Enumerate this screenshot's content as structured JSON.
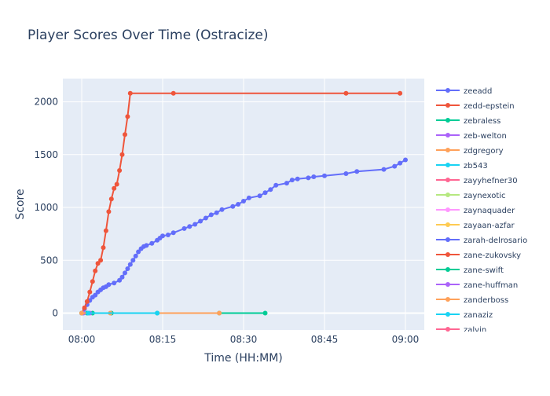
{
  "chart_data": {
    "type": "line",
    "title": "Player Scores Over Time (Ostracize)",
    "xlabel": "Time (HH:MM)",
    "ylabel": "Score",
    "x_ticks": [
      "08:00",
      "08:15",
      "08:30",
      "08:45",
      "09:00"
    ],
    "y_ticks": [
      0,
      500,
      1000,
      1500,
      2000
    ],
    "xlim_minutes": [
      -3.5,
      63.5
    ],
    "ylim": [
      -160,
      2220
    ],
    "grid": true,
    "legend_position": "right",
    "legend": [
      {
        "name": "zeeadd",
        "color": "#636efa"
      },
      {
        "name": "zedd-epstein",
        "color": "#EF553B"
      },
      {
        "name": "zebraless",
        "color": "#00cc96"
      },
      {
        "name": "zeb-welton",
        "color": "#ab63fa"
      },
      {
        "name": "zdgregory",
        "color": "#FFA15A"
      },
      {
        "name": "zb543",
        "color": "#19d3f3"
      },
      {
        "name": "zayyhefner30",
        "color": "#FF6692"
      },
      {
        "name": "zaynexotic",
        "color": "#B6E880"
      },
      {
        "name": "zaynaquader",
        "color": "#FF97FF"
      },
      {
        "name": "zayaan-azfar",
        "color": "#FECB52"
      },
      {
        "name": "zarah-delrosario",
        "color": "#636efa"
      },
      {
        "name": "zane-zukovsky",
        "color": "#EF553B"
      },
      {
        "name": "zane-swift",
        "color": "#00cc96"
      },
      {
        "name": "zane-huffman",
        "color": "#ab63fa"
      },
      {
        "name": "zanderboss",
        "color": "#FFA15A"
      },
      {
        "name": "zanaziz",
        "color": "#19d3f3"
      },
      {
        "name": "zalvin",
        "color": "#FF6692"
      }
    ],
    "series": [
      {
        "name": "zarah-delrosario",
        "color": "#636efa",
        "x_minutes": [
          0,
          0.5,
          1,
          1.5,
          2,
          2.5,
          3,
          3.5,
          4,
          4.5,
          5,
          6,
          7,
          7.5,
          8,
          8.5,
          9,
          9.5,
          10,
          10.5,
          11,
          11.5,
          12,
          13,
          14,
          14.5,
          15,
          16,
          17,
          19,
          20,
          21,
          22,
          23,
          24,
          25,
          26,
          28,
          29,
          30,
          31,
          33,
          34,
          35,
          36,
          38,
          39,
          40,
          42,
          43,
          45,
          49,
          51,
          56,
          58,
          59,
          60
        ],
        "y": [
          0,
          40,
          80,
          120,
          150,
          170,
          200,
          220,
          240,
          250,
          270,
          285,
          310,
          340,
          380,
          420,
          460,
          500,
          540,
          580,
          610,
          630,
          640,
          660,
          690,
          710,
          730,
          740,
          760,
          800,
          820,
          840,
          870,
          900,
          930,
          950,
          980,
          1010,
          1030,
          1060,
          1090,
          1110,
          1140,
          1170,
          1210,
          1230,
          1260,
          1270,
          1280,
          1290,
          1300,
          1320,
          1340,
          1360,
          1390,
          1420,
          1450
        ]
      },
      {
        "name": "zane-zukovsky",
        "color": "#EF553B",
        "x_minutes": [
          0,
          0.5,
          1,
          1.5,
          2,
          2.5,
          3,
          3.5,
          4,
          4.5,
          5,
          5.5,
          6,
          6.5,
          7,
          7.5,
          8,
          8.5,
          9,
          17,
          49,
          59
        ],
        "y": [
          0,
          50,
          110,
          200,
          300,
          400,
          470,
          500,
          620,
          780,
          960,
          1080,
          1180,
          1220,
          1350,
          1500,
          1690,
          1860,
          2080,
          2080,
          2080,
          2080
        ]
      },
      {
        "name": "zebraless",
        "color": "#00cc96",
        "x_minutes": [
          0,
          1,
          2,
          5.5,
          14,
          25.5,
          34
        ],
        "y": [
          0,
          0,
          0,
          0,
          0,
          0,
          0
        ]
      },
      {
        "name": "zeb-welton",
        "color": "#ab63fa",
        "x_minutes": [
          0.3,
          1.5
        ],
        "y": [
          0,
          0
        ]
      },
      {
        "name": "zdgregory",
        "color": "#FFA15A",
        "x_minutes": [
          0,
          5.3,
          25.5
        ],
        "y": [
          0,
          0,
          0
        ]
      },
      {
        "name": "zb543",
        "color": "#19d3f3",
        "x_minutes": [
          1.2,
          14
        ],
        "y": [
          0,
          0
        ]
      }
    ]
  }
}
